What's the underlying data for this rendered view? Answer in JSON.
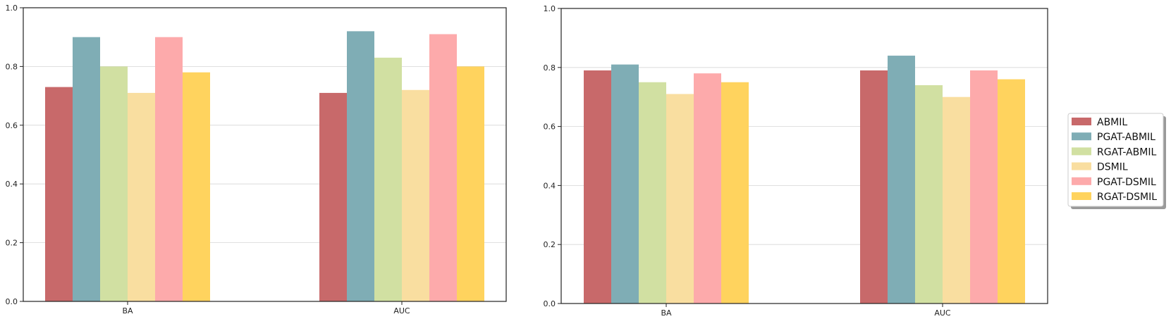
{
  "chart_data": [
    {
      "type": "bar",
      "categories": [
        "BA",
        "AUC"
      ],
      "series": [
        {
          "name": "ABMIL",
          "values": [
            0.73,
            0.71
          ]
        },
        {
          "name": "PGAT-ABMIL",
          "values": [
            0.9,
            0.92
          ]
        },
        {
          "name": "RGAT-ABMIL",
          "values": [
            0.8,
            0.83
          ]
        },
        {
          "name": "DSMIL",
          "values": [
            0.71,
            0.72
          ]
        },
        {
          "name": "PGAT-DSMIL",
          "values": [
            0.9,
            0.91
          ]
        },
        {
          "name": "RGAT-DSMIL",
          "values": [
            0.78,
            0.8
          ]
        }
      ],
      "ylim": [
        0,
        1.0
      ],
      "yticks": [
        "0.0",
        "0.2",
        "0.4",
        "0.6",
        "0.8",
        "1.0"
      ],
      "grid": "horizontal"
    },
    {
      "type": "bar",
      "categories": [
        "BA",
        "AUC"
      ],
      "series": [
        {
          "name": "ABMIL",
          "values": [
            0.79,
            0.79
          ]
        },
        {
          "name": "PGAT-ABMIL",
          "values": [
            0.81,
            0.84
          ]
        },
        {
          "name": "RGAT-ABMIL",
          "values": [
            0.75,
            0.74
          ]
        },
        {
          "name": "DSMIL",
          "values": [
            0.71,
            0.7
          ]
        },
        {
          "name": "PGAT-DSMIL",
          "values": [
            0.78,
            0.79
          ]
        },
        {
          "name": "RGAT-DSMIL",
          "values": [
            0.75,
            0.76
          ]
        }
      ],
      "ylim": [
        0,
        1.0
      ],
      "yticks": [
        "0.0",
        "0.2",
        "0.4",
        "0.6",
        "0.8",
        "1.0"
      ],
      "grid": "horizontal"
    }
  ],
  "legend": {
    "placement": "right",
    "entries": [
      "ABMIL",
      "PGAT-ABMIL",
      "RGAT-ABMIL",
      "DSMIL",
      "PGAT-DSMIL",
      "RGAT-DSMIL"
    ]
  },
  "colors": [
    "#c8696a",
    "#7fadb5",
    "#d1e0a2",
    "#f9dea0",
    "#fdaaab",
    "#ffd35e"
  ]
}
